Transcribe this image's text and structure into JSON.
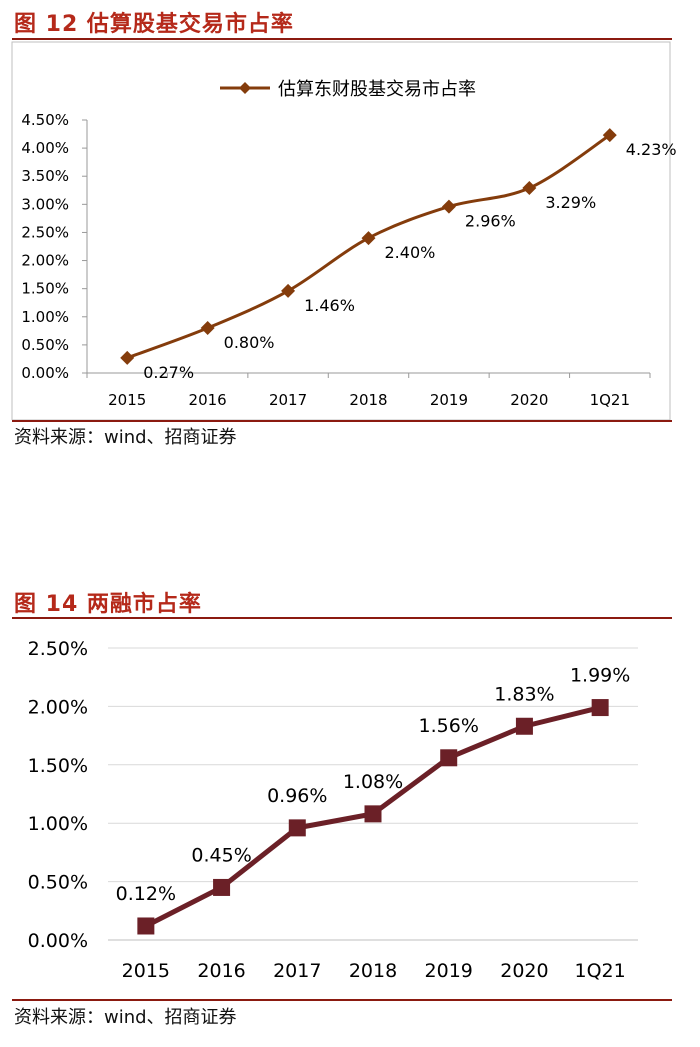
{
  "figure12": {
    "title": "图 12 估算股基交易市占率",
    "source": "资料来源：wind、招商证券",
    "line_color": "#843c0c",
    "chart_data": {
      "type": "line",
      "categories": [
        "2015",
        "2016",
        "2017",
        "2018",
        "2019",
        "2020",
        "1Q21"
      ],
      "series": [
        {
          "name": "估算东财股基交易市占率",
          "values": [
            0.27,
            0.8,
            1.46,
            2.4,
            2.96,
            3.29,
            4.23
          ]
        }
      ],
      "data_labels": [
        "0.27%",
        "0.80%",
        "1.46%",
        "2.40%",
        "2.96%",
        "3.29%",
        "4.23%"
      ],
      "y_ticks": [
        "0.00%",
        "0.50%",
        "1.00%",
        "1.50%",
        "2.00%",
        "2.50%",
        "3.00%",
        "3.50%",
        "4.00%",
        "4.50%"
      ],
      "ylim": [
        0,
        4.5
      ],
      "grid": false,
      "legend": "top-center",
      "marker": "diamond"
    }
  },
  "figure14": {
    "title": "图 14 两融市占率",
    "source": "资料来源：wind、招商证券",
    "line_color": "#6b2027",
    "grid_color": "#d9d9d9",
    "chart_data": {
      "type": "line",
      "categories": [
        "2015",
        "2016",
        "2017",
        "2018",
        "2019",
        "2020",
        "1Q21"
      ],
      "series": [
        {
          "values": [
            0.12,
            0.45,
            0.96,
            1.08,
            1.56,
            1.83,
            1.99
          ]
        }
      ],
      "data_labels": [
        "0.12%",
        "0.45%",
        "0.96%",
        "1.08%",
        "1.56%",
        "1.83%",
        "1.99%"
      ],
      "y_ticks": [
        "0.00%",
        "0.50%",
        "1.00%",
        "1.50%",
        "2.00%",
        "2.50%"
      ],
      "ylim": [
        0,
        2.5
      ],
      "grid": true,
      "legend": "none",
      "marker": "square"
    }
  }
}
